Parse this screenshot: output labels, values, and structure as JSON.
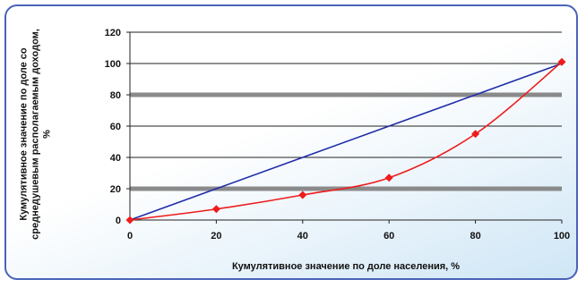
{
  "chart_data": {
    "type": "line",
    "x": [
      0,
      20,
      40,
      60,
      80,
      100
    ],
    "series": [
      {
        "name": "",
        "values": [
          0,
          20,
          40,
          60,
          80,
          100
        ],
        "color": "#1f2ca8",
        "markers": false
      },
      {
        "name": "",
        "values": [
          0,
          7,
          16,
          27,
          55,
          101
        ],
        "color": "#ee1c1c",
        "markers": true
      }
    ],
    "xlabel": "Кумулятивное значение по доле населения, %",
    "ylabel": "Кумулятивное значение по доле со среднедушевым располагаемым доходом, %",
    "xlim": [
      0,
      100
    ],
    "ylim": [
      0,
      120
    ],
    "xticks": [
      "0",
      "20",
      "40",
      "60",
      "80",
      "100"
    ],
    "yticks": [
      "0",
      "20",
      "40",
      "60",
      "80",
      "100",
      "120"
    ],
    "grid": "horizontal",
    "highlighted_gridlines": [
      20,
      80
    ],
    "background_color": "#ffffff",
    "border_color": "#4a63b8"
  }
}
